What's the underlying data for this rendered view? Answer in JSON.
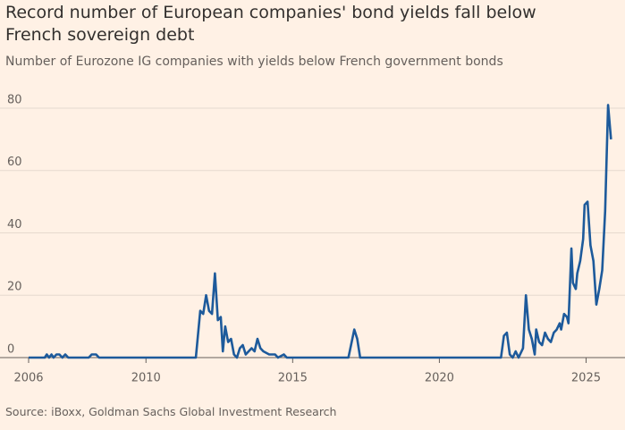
{
  "chart_data": {
    "type": "line",
    "title": "Record number of European companies' bond yields fall below French sovereign debt",
    "subtitle": "Number of Eurozone IG companies with yields below French government bonds",
    "source": "Source: iBoxx, Goldman Sachs Global Investment Research",
    "color": "#1d5a9b",
    "grid": true,
    "x": [
      2006.0,
      2006.55,
      2006.62,
      2006.7,
      2006.78,
      2006.85,
      2006.95,
      2007.05,
      2007.15,
      2007.25,
      2007.35,
      2008.05,
      2008.15,
      2008.3,
      2008.4,
      2011.7,
      2011.85,
      2011.95,
      2012.05,
      2012.15,
      2012.25,
      2012.35,
      2012.45,
      2012.55,
      2012.62,
      2012.7,
      2012.8,
      2012.9,
      2013.0,
      2013.1,
      2013.2,
      2013.3,
      2013.4,
      2013.5,
      2013.6,
      2013.7,
      2013.8,
      2013.9,
      2014.0,
      2014.2,
      2014.4,
      2014.5,
      2014.7,
      2014.8,
      2016.9,
      2017.1,
      2017.2,
      2017.3,
      2022.1,
      2022.2,
      2022.3,
      2022.4,
      2022.5,
      2022.6,
      2022.7,
      2022.85,
      2022.95,
      2023.05,
      2023.15,
      2023.25,
      2023.3,
      2023.4,
      2023.5,
      2023.6,
      2023.7,
      2023.8,
      2023.9,
      2024.0,
      2024.1,
      2024.15,
      2024.25,
      2024.35,
      2024.4,
      2024.5,
      2024.55,
      2024.65,
      2024.7,
      2024.8,
      2024.9,
      2024.95,
      2025.05,
      2025.15,
      2025.25,
      2025.35,
      2025.45,
      2025.55,
      2025.65,
      2025.75,
      2025.85
    ],
    "values": [
      0,
      0,
      1,
      0,
      1,
      0,
      1,
      1,
      0,
      1,
      0,
      0,
      1,
      1,
      0,
      0,
      15,
      14,
      20,
      15,
      14,
      27,
      12,
      13,
      2,
      10,
      5,
      6,
      1,
      0,
      3,
      4,
      1,
      2,
      3,
      2,
      6,
      3,
      2,
      1,
      1,
      0,
      1,
      0,
      0,
      9,
      6,
      0,
      0,
      7,
      8,
      1,
      0,
      2,
      0,
      3,
      20,
      9,
      6,
      1,
      9,
      5,
      4,
      8,
      6,
      5,
      8,
      9,
      11,
      9,
      14,
      13,
      11,
      35,
      24,
      22,
      27,
      31,
      38,
      49,
      50,
      36,
      31,
      17,
      22,
      28,
      47,
      81,
      70
    ],
    "xlim": [
      2006,
      2025.9
    ],
    "ylim": [
      0,
      84
    ],
    "xticks": [
      2006,
      2010,
      2015,
      2020,
      2025
    ],
    "yticks": [
      0,
      20,
      40,
      60,
      80
    ]
  }
}
